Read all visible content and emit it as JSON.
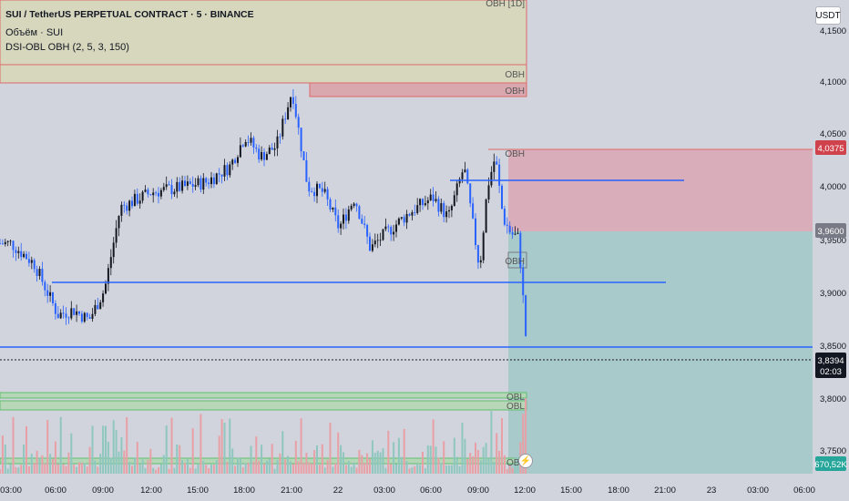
{
  "legend": {
    "symbol": "SUI / TetherUS PERPETUAL CONTRACT · 5 · BINANCE",
    "volume": "Объём · SUI",
    "indicator": "DSI-OBL OBH (2, 5, 3, 150)"
  },
  "currency": "USDT",
  "price_scale": {
    "ticks": [
      "4,1500",
      "4,1000",
      "4,0500",
      "4,0000",
      "3,9500",
      "3,9000",
      "3,8500",
      "3,8000",
      "3,7500"
    ],
    "target_label": "4,0375",
    "entry_label": "3,9600",
    "current_label": "3,8394",
    "countdown": "02:03",
    "volume_label": "670,52K"
  },
  "time_axis": [
    "03:00",
    "06:00",
    "09:00",
    "12:00",
    "15:00",
    "18:00",
    "21:00",
    "22",
    "03:00",
    "06:00",
    "09:00",
    "12:00",
    "15:00",
    "18:00",
    "21:00",
    "23",
    "03:00",
    "06:00"
  ],
  "zones": {
    "top_zone_label": "OBH [1D]",
    "obh_1": "OBH",
    "obh_2": "OBH",
    "obh_3": "OBH",
    "obh_4": "OBH",
    "obl_1": "OBL",
    "obl_2": "OBL",
    "obl_3": "OBL"
  },
  "colors": {
    "background": "#d1d4dc",
    "up": "#131722",
    "blue_line": "#2962ff",
    "profit_zone": "#f2a0ad",
    "loss_zone": "#80cbc4",
    "target_tag": "#d0424b",
    "entry_tag": "#787b86",
    "current_tag": "#131722",
    "volume_tag": "#26a69a"
  },
  "chart_data": {
    "type": "candlestick",
    "title": "SUI / TetherUS PERPETUAL CONTRACT · 5 · BINANCE",
    "ylim": [
      3.718,
      4.183
    ],
    "levels": {
      "target": 4.0375,
      "entry": 3.96,
      "current": 3.8394
    },
    "horizontal_lines": [
      4.0075,
      3.9115,
      3.8465
    ],
    "close_path_times": [
      "03:00",
      "04:30",
      "06:00",
      "07:00",
      "08:00",
      "09:00",
      "10:00",
      "12:00",
      "14:00",
      "15:30",
      "17:00",
      "18:00",
      "19:00",
      "20:00",
      "21:00",
      "22:00",
      "23:00",
      "00:00",
      "01:00",
      "02:00",
      "03:00",
      "04:30",
      "06:00",
      "07:00",
      "08:00",
      "09:00",
      "09:30",
      "10:00",
      "10:30",
      "11:00",
      "11:30",
      "12:00"
    ],
    "close_path_values": [
      3.945,
      3.925,
      3.875,
      3.88,
      3.87,
      3.9,
      3.98,
      3.995,
      4.0,
      4.005,
      4.02,
      4.05,
      4.03,
      4.04,
      4.095,
      4.0,
      3.995,
      3.96,
      3.99,
      3.94,
      3.955,
      3.975,
      3.99,
      3.97,
      4.02,
      3.92,
      4.0,
      4.03,
      3.97,
      3.955,
      3.95,
      3.845
    ],
    "volume_max_k": 670.52
  }
}
